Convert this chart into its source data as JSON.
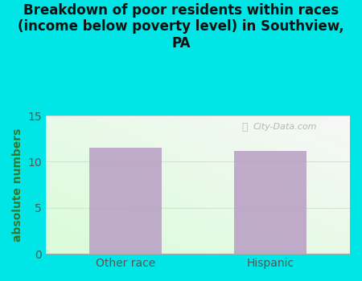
{
  "title": "Breakdown of poor residents within races\n(income below poverty level) in Southview,\nPA",
  "categories": [
    "Other race",
    "Hispanic"
  ],
  "values": [
    11.5,
    11.2
  ],
  "bar_color": "#b89ec4",
  "ylabel": "absolute numbers",
  "ylim": [
    0,
    15
  ],
  "yticks": [
    0,
    5,
    10,
    15
  ],
  "fig_bg_color": "#00e5e5",
  "title_fontsize": 12,
  "ylabel_fontsize": 10,
  "tick_fontsize": 10,
  "watermark": "City-Data.com",
  "grid_color": "#dddddd",
  "ylabel_color": "#2d7a2d",
  "tick_color": "#555555",
  "bar_width": 0.5,
  "xlim": [
    -0.55,
    1.55
  ]
}
